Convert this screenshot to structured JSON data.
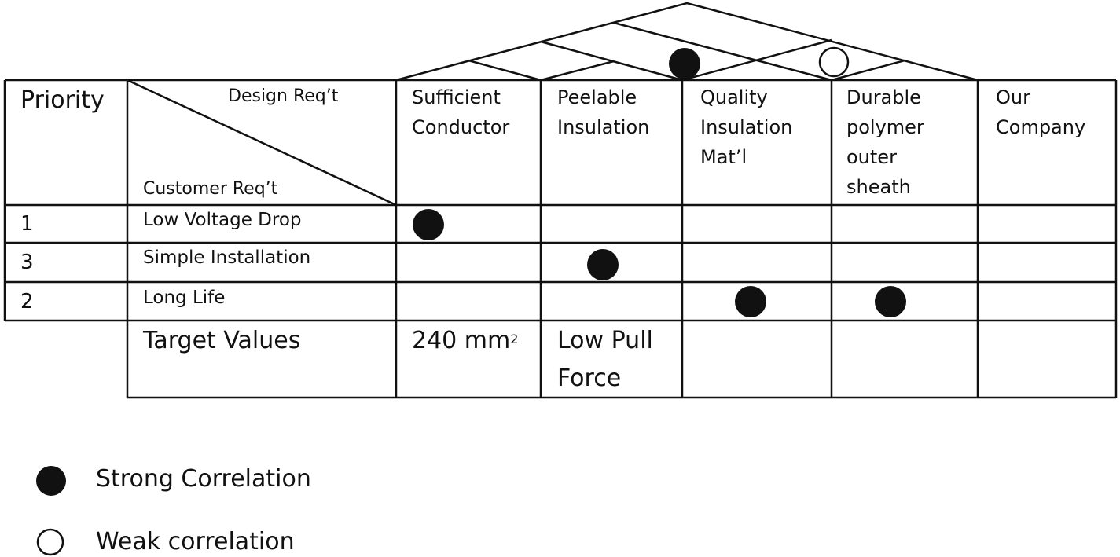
{
  "header": {
    "priority": "Priority",
    "design_req": "Design Req’t",
    "customer_req": "Customer Req’t"
  },
  "columns": [
    {
      "line1": "Sufficient",
      "line2": "Conductor"
    },
    {
      "line1": "Peelable",
      "line2": "Insulation"
    },
    {
      "line1": "Quality",
      "line2": "Insulation",
      "line3": "Mat’l"
    },
    {
      "line1": "Durable",
      "line2": "polymer",
      "line3": "outer",
      "line4": "sheath"
    },
    {
      "line1": "Our",
      "line2": "Company"
    }
  ],
  "rows": [
    {
      "priority": "1",
      "requirement": "Low Voltage Drop"
    },
    {
      "priority": "3",
      "requirement": "Simple Installation"
    },
    {
      "priority": "2",
      "requirement": "Long Life"
    }
  ],
  "matrix_marks": [
    {
      "row": 0,
      "col": 0,
      "type": "strong"
    },
    {
      "row": 1,
      "col": 1,
      "type": "strong"
    },
    {
      "row": 2,
      "col": 2,
      "type": "strong"
    },
    {
      "row": 2,
      "col": 3,
      "type": "strong"
    }
  ],
  "roof_marks": [
    {
      "cols": [
        1,
        2
      ],
      "type": "strong"
    },
    {
      "cols": [
        2,
        3
      ],
      "type": "weak"
    }
  ],
  "target": {
    "label": "Target Values",
    "col0_main": "240 mm",
    "col0_sup": "2",
    "col1_line1": "Low Pull",
    "col1_line2": "Force"
  },
  "legend": {
    "strong": "Strong Correlation",
    "weak": "Weak correlation"
  },
  "colors": {
    "ink": "#111111",
    "background": "#ffffff"
  }
}
